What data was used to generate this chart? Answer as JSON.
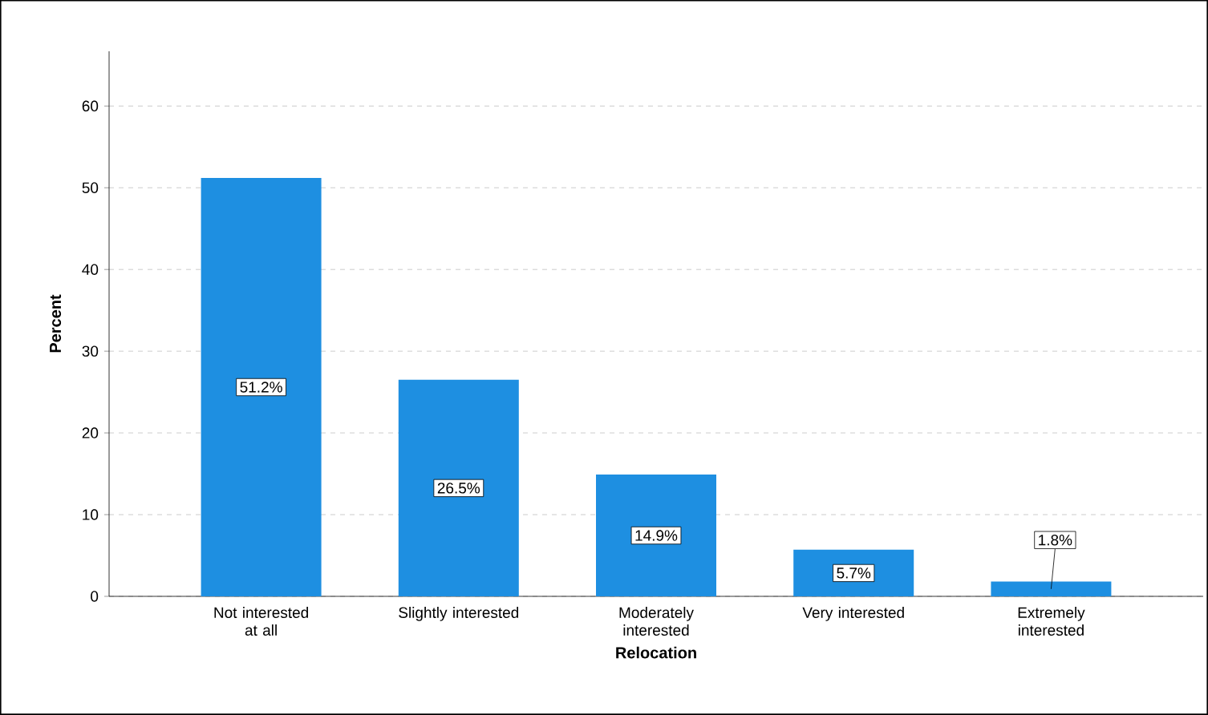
{
  "chart_data": {
    "type": "bar",
    "xlabel": "Relocation",
    "ylabel": "Percent",
    "categories": [
      "Not interested at all",
      "Slightly interested",
      "Moderately interested",
      "Very interested",
      "Extremely interested"
    ],
    "values": [
      51.2,
      26.5,
      14.9,
      5.7,
      1.8
    ],
    "value_labels": [
      "51.2%",
      "26.5%",
      "14.9%",
      "5.7%",
      "1.8%"
    ],
    "color": "#1e8fe1",
    "ylim": [
      0,
      66.7
    ],
    "yticks": [
      0,
      10,
      20,
      30,
      40,
      50,
      60
    ],
    "grid": "y"
  }
}
